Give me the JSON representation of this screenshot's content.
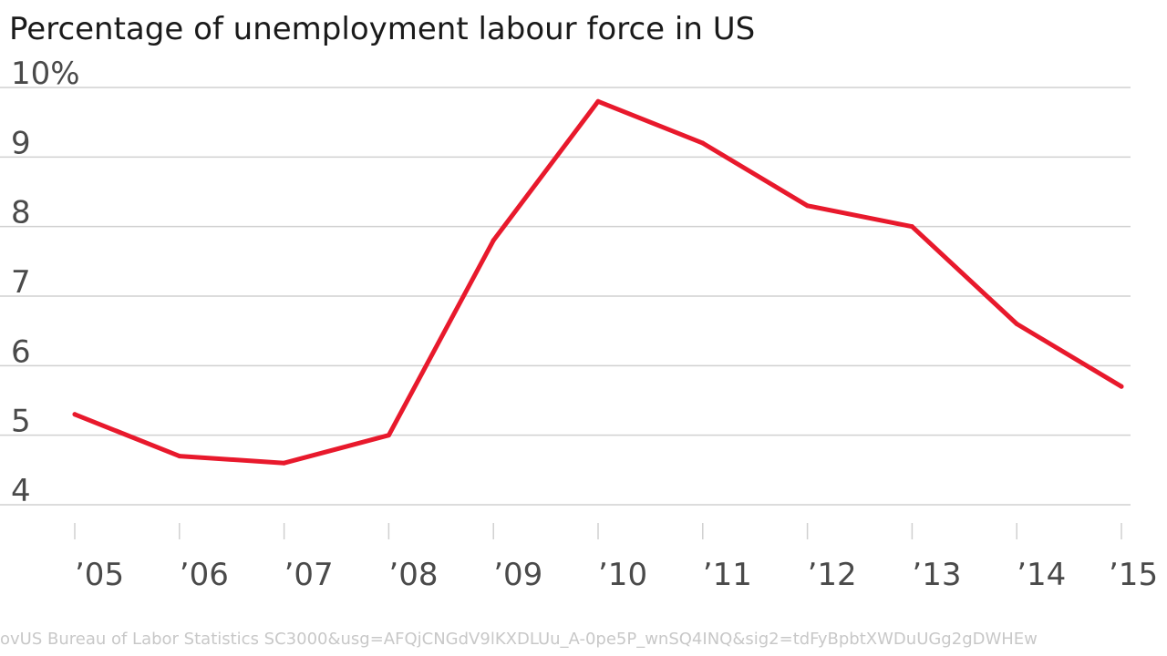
{
  "chart_data": {
    "type": "line",
    "title": "Percentage of unemployment labour force in US",
    "xlabel": "",
    "ylabel": "",
    "categories": [
      "’05",
      "’06",
      "’07",
      "’08",
      "’09",
      "’10",
      "’11",
      "’12",
      "’13",
      "’14",
      "’15"
    ],
    "series": [
      {
        "values": [
          5.3,
          4.7,
          4.6,
          5.0,
          7.8,
          9.8,
          9.2,
          8.3,
          8.0,
          6.6,
          5.7
        ]
      }
    ],
    "y_ticks": [
      4,
      5,
      6,
      7,
      8,
      9,
      10
    ],
    "y_tick_labels": [
      "4",
      "5",
      "6",
      "7",
      "8",
      "9",
      "10%"
    ],
    "ylim": [
      4,
      10
    ],
    "grid": true,
    "line_color": "#e8192c",
    "grid_color": "#d0d0d0",
    "tick_label_color": "#4a4a4a"
  },
  "footer": {
    "source_text": "ovUS Bureau of Labor Statistics SC3000&usg=AFQjCNGdV9lKXDLUu_A-0pe5P_wnSQ4INQ&sig2=tdFyBpbtXWDuUGg2gDWHEw"
  }
}
